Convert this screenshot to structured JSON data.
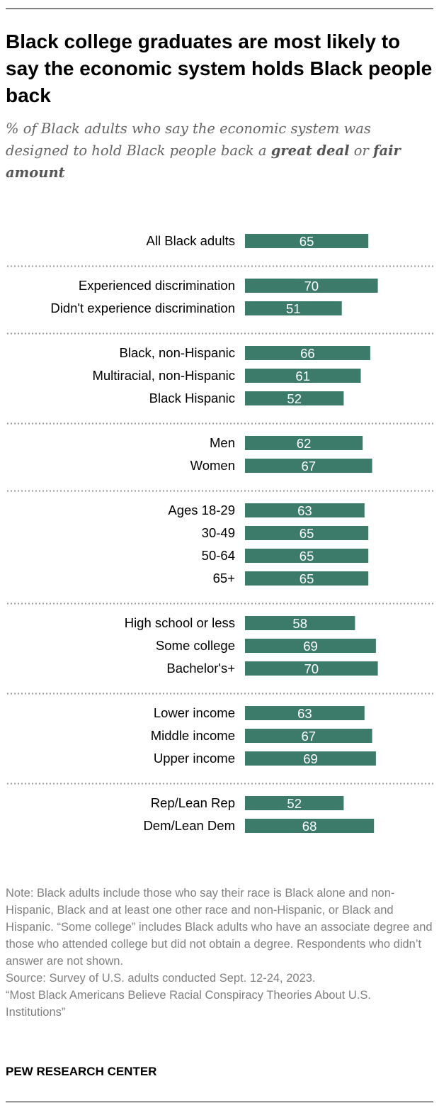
{
  "title": "Black college graduates are most likely to say the economic system holds Black people back",
  "subtitle": {
    "before": "% of Black adults who say the economic system was designed to hold Black people back a ",
    "bold1": "great deal",
    "mid": " or ",
    "bold2": "fair amount"
  },
  "colors": {
    "bar": "#3c7a6a",
    "label_on_bar": "#ffffff",
    "separator": "#999999"
  },
  "chart_data": {
    "type": "bar",
    "orientation": "horizontal",
    "title": "Black college graduates are most likely to say the economic system holds Black people back",
    "xlim": [
      0,
      100
    ],
    "groups": [
      {
        "rows": [
          {
            "label": "All Black adults",
            "value": 65
          }
        ]
      },
      {
        "rows": [
          {
            "label": "Experienced discrimination",
            "value": 70
          },
          {
            "label": "Didn't experience discrimination",
            "value": 51
          }
        ]
      },
      {
        "rows": [
          {
            "label": "Black, non-Hispanic",
            "value": 66
          },
          {
            "label": "Multiracial, non-Hispanic",
            "value": 61
          },
          {
            "label": "Black Hispanic",
            "value": 52
          }
        ]
      },
      {
        "rows": [
          {
            "label": "Men",
            "value": 62
          },
          {
            "label": "Women",
            "value": 67
          }
        ]
      },
      {
        "rows": [
          {
            "label": "Ages 18-29",
            "value": 63
          },
          {
            "label": "30-49",
            "value": 65
          },
          {
            "label": "50-64",
            "value": 65
          },
          {
            "label": "65+",
            "value": 65
          }
        ]
      },
      {
        "rows": [
          {
            "label": "High school or less",
            "value": 58
          },
          {
            "label": "Some college",
            "value": 69
          },
          {
            "label": "Bachelor's+",
            "value": 70
          }
        ]
      },
      {
        "rows": [
          {
            "label": "Lower income",
            "value": 63
          },
          {
            "label": "Middle income",
            "value": 67
          },
          {
            "label": "Upper income",
            "value": 69
          }
        ]
      },
      {
        "rows": [
          {
            "label": "Rep/Lean Rep",
            "value": 52
          },
          {
            "label": "Dem/Lean Dem",
            "value": 68
          }
        ]
      }
    ]
  },
  "note": "Note: Black adults include those who say their race is Black alone and non-Hispanic, Black and at least one other race and non-Hispanic, or Black and Hispanic. “Some college” includes Black adults who have an associate degree and those who attended college but did not obtain a degree. Respondents who didn’t answer are not shown.",
  "source": "Source: Survey of U.S. adults conducted Sept. 12-24, 2023.",
  "report": "“Most Black Americans Believe Racial Conspiracy Theories About U.S. Institutions”",
  "brand": "PEW RESEARCH CENTER"
}
